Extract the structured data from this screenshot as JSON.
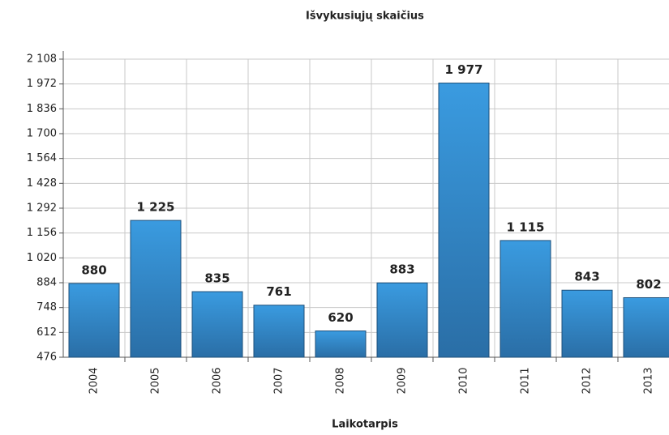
{
  "chart_data": {
    "type": "bar",
    "title": "Išvykusiųjų skaičius",
    "x_label": "Laikotarpis",
    "categories": [
      "2004",
      "2005",
      "2006",
      "2007",
      "2008",
      "2009",
      "2010",
      "2011",
      "2012",
      "2013"
    ],
    "values": [
      880,
      1225,
      835,
      761,
      620,
      883,
      1977,
      1115,
      843,
      802
    ],
    "value_labels": [
      "880",
      "1 225",
      "835",
      "761",
      "620",
      "883",
      "1 977",
      "1 115",
      "843",
      "802"
    ],
    "color": "#3391d6",
    "ylim": [
      476,
      2108
    ],
    "yticks": [
      476,
      612,
      748,
      884,
      {
        "value": 1020,
        "label": "1 020"
      },
      {
        "value": 1156,
        "label": "1 156"
      },
      {
        "value": 1292,
        "label": "1 292"
      },
      {
        "value": 1428,
        "label": "1 428"
      },
      {
        "value": 1564,
        "label": "1 564"
      },
      {
        "value": 1700,
        "label": "1 700"
      },
      {
        "value": 1836,
        "label": "1 836"
      },
      {
        "value": 1972,
        "label": "1 972"
      },
      {
        "value": 2108,
        "label": "2 108"
      }
    ],
    "grid": true
  }
}
